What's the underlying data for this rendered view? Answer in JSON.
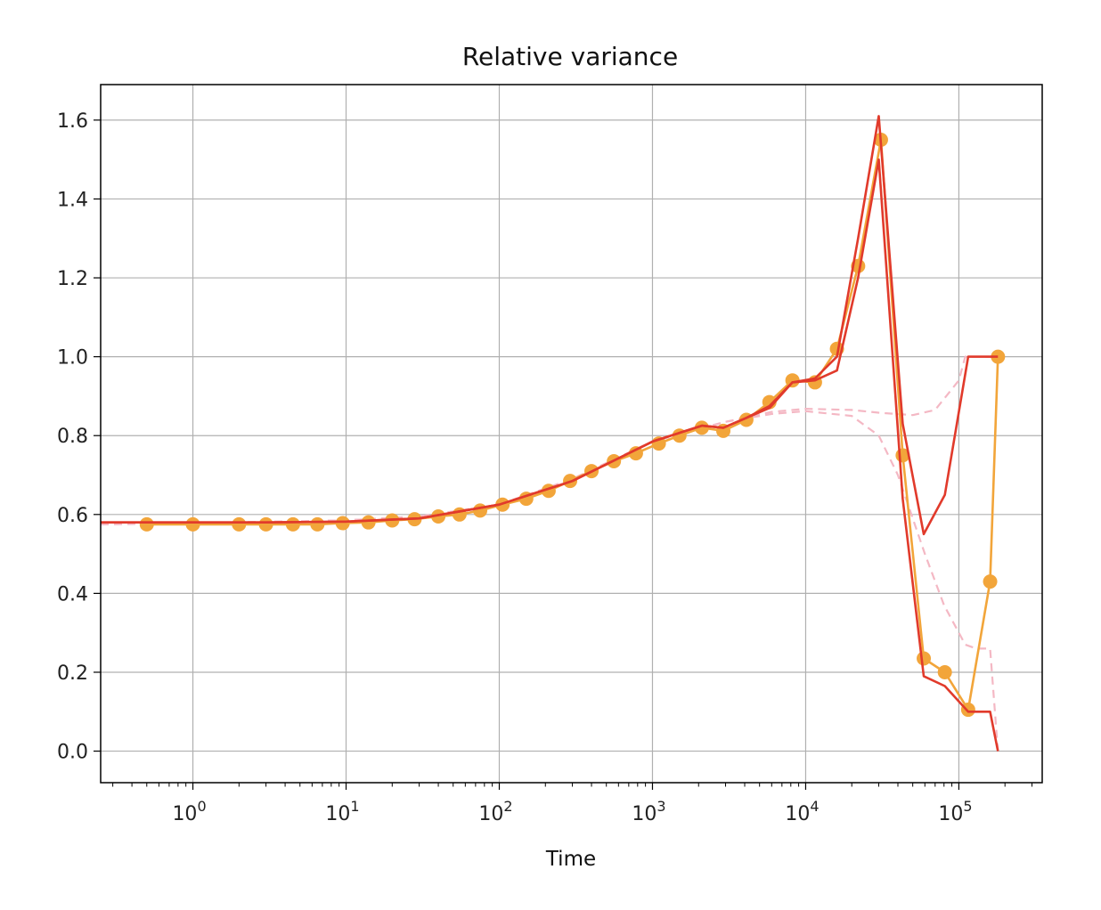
{
  "chart_data": {
    "type": "line",
    "title": "Relative variance",
    "xlabel": "Time",
    "ylabel": "",
    "xscale": "log",
    "xlim": [
      0.25,
      350000
    ],
    "ylim": [
      -0.08,
      1.69
    ],
    "grid": true,
    "xticks": [
      {
        "value": 1,
        "base": "10",
        "exp": "0"
      },
      {
        "value": 10,
        "base": "10",
        "exp": "1"
      },
      {
        "value": 100,
        "base": "10",
        "exp": "2"
      },
      {
        "value": 1000,
        "base": "10",
        "exp": "3"
      },
      {
        "value": 10000,
        "base": "10",
        "exp": "4"
      },
      {
        "value": 100000,
        "base": "10",
        "exp": "5"
      }
    ],
    "yticks": [
      {
        "value": 0.0,
        "label": "0.0"
      },
      {
        "value": 0.2,
        "label": "0.2"
      },
      {
        "value": 0.4,
        "label": "0.4"
      },
      {
        "value": 0.6,
        "label": "0.6"
      },
      {
        "value": 0.8,
        "label": "0.8"
      },
      {
        "value": 1.0,
        "label": "1.0"
      },
      {
        "value": 1.2,
        "label": "1.2"
      },
      {
        "value": 1.4,
        "label": "1.4"
      },
      {
        "value": 1.6,
        "label": "1.6"
      }
    ],
    "series": [
      {
        "style": "dashed",
        "color": "#f4b8c4",
        "x": [
          0.25,
          1,
          10,
          30,
          100,
          300,
          1000,
          3000,
          6000,
          10000,
          20000,
          30000,
          50000,
          70000,
          100000,
          110000,
          180000
        ],
        "y": [
          0.575,
          0.578,
          0.585,
          0.595,
          0.625,
          0.69,
          0.785,
          0.835,
          0.86,
          0.868,
          0.865,
          0.858,
          0.852,
          0.865,
          0.94,
          1.0,
          1.0
        ]
      },
      {
        "style": "dashed",
        "color": "#f4b8c4",
        "x": [
          0.25,
          1,
          10,
          30,
          100,
          300,
          1000,
          3000,
          6000,
          10000,
          20000,
          30000,
          40000,
          60000,
          80000,
          110000,
          130000,
          160000,
          180000
        ],
        "y": [
          0.575,
          0.578,
          0.585,
          0.595,
          0.625,
          0.69,
          0.785,
          0.835,
          0.855,
          0.862,
          0.85,
          0.8,
          0.7,
          0.5,
          0.37,
          0.27,
          0.26,
          0.26,
          0.0
        ]
      },
      {
        "style": "solid-markers",
        "color": "#f2a53a",
        "x": [
          0.5,
          1,
          2,
          3,
          4.5,
          6.5,
          9.5,
          14,
          20,
          28,
          40,
          55,
          75,
          105,
          150,
          210,
          290,
          400,
          560,
          780,
          1100,
          1500,
          2100,
          2900,
          4100,
          5800,
          8200,
          11500,
          16000,
          22000,
          31000,
          43000,
          59000,
          81000,
          115000,
          160000,
          180000
        ],
        "y": [
          0.575,
          0.575,
          0.575,
          0.575,
          0.575,
          0.575,
          0.578,
          0.58,
          0.585,
          0.588,
          0.595,
          0.6,
          0.61,
          0.625,
          0.64,
          0.66,
          0.685,
          0.71,
          0.735,
          0.755,
          0.78,
          0.8,
          0.82,
          0.812,
          0.84,
          0.885,
          0.94,
          0.935,
          1.02,
          1.23,
          1.55,
          0.75,
          0.235,
          0.2,
          0.105,
          0.43,
          1.0
        ]
      },
      {
        "style": "solid",
        "color": "#e13a2b",
        "x": [
          0.25,
          1,
          3,
          10,
          30,
          100,
          300,
          1000,
          2100,
          2900,
          4100,
          5800,
          8200,
          11500,
          16000,
          22000,
          30000,
          43000,
          59000,
          81000,
          115000,
          180000
        ],
        "y": [
          0.58,
          0.58,
          0.58,
          0.582,
          0.59,
          0.625,
          0.685,
          0.785,
          0.825,
          0.82,
          0.845,
          0.875,
          0.935,
          0.945,
          1.0,
          1.3,
          1.61,
          0.83,
          0.55,
          0.65,
          1.0,
          1.0
        ]
      },
      {
        "style": "solid",
        "color": "#e13a2b",
        "x": [
          0.25,
          1,
          3,
          10,
          30,
          100,
          300,
          1000,
          2100,
          2900,
          4100,
          5800,
          8200,
          11500,
          16000,
          22000,
          30000,
          43000,
          59000,
          81000,
          115000,
          160000,
          180000
        ],
        "y": [
          0.58,
          0.58,
          0.58,
          0.582,
          0.59,
          0.625,
          0.685,
          0.785,
          0.825,
          0.82,
          0.845,
          0.87,
          0.935,
          0.94,
          0.965,
          1.2,
          1.5,
          0.64,
          0.19,
          0.165,
          0.1,
          0.1,
          0.0
        ]
      }
    ]
  }
}
